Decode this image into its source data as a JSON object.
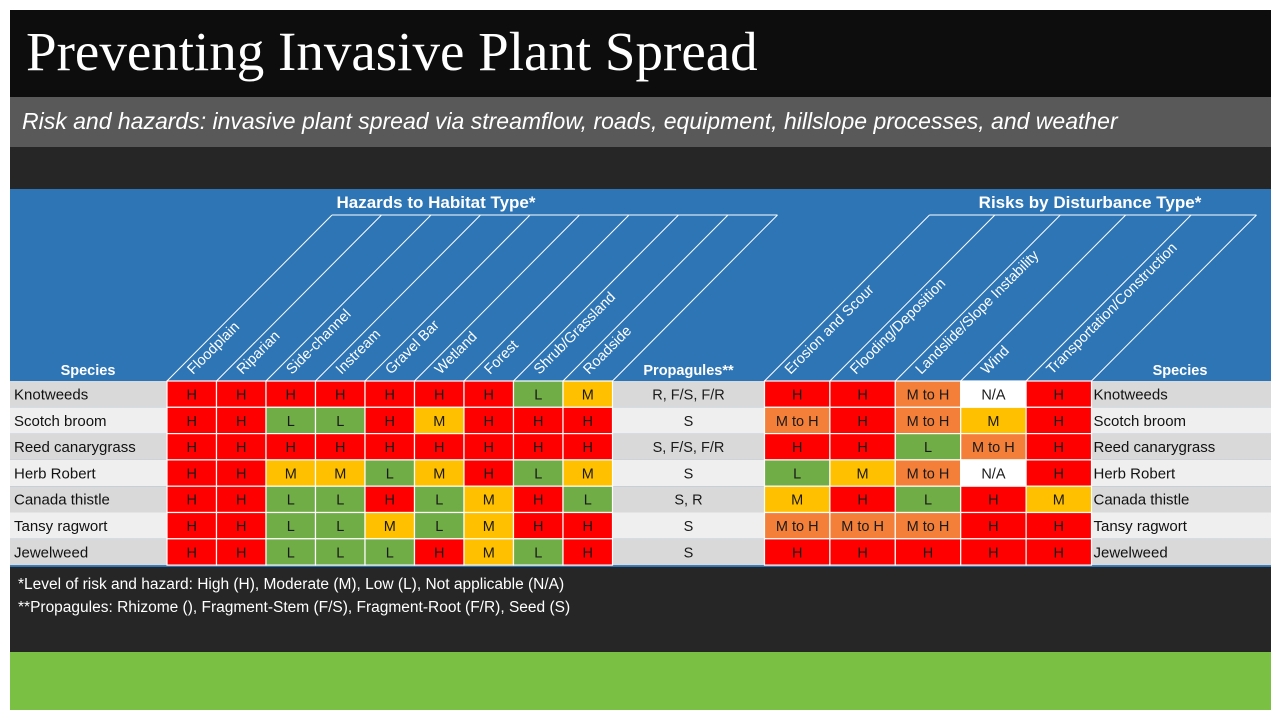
{
  "title": "Preventing Invasive Plant Spread",
  "subtitle": "Risk and hazards: invasive plant spread via streamflow, roads, equipment, hillslope processes, and weather",
  "colors": {
    "H": "#ff0000",
    "M": "#ffc000",
    "L": "#70ad47",
    "MtoH": "#f47f39",
    "NA": "#ffffff",
    "header_blue": "#2e75b6",
    "footer_green": "#7ac143"
  },
  "table": {
    "hazards_header": "Hazards to Habitat Type*",
    "risks_header": "Risks by Disturbance Type*",
    "species_label": "Species",
    "propagules_label": "Propagules**",
    "habitat_columns": [
      "Floodplain",
      "Riparian",
      "Side-channel",
      "Instream",
      "Gravel Bar",
      "Wetland",
      "Forest",
      "Shrub/Grassland",
      "Roadside"
    ],
    "disturbance_columns": [
      "Erosion and Scour",
      "Flooding/Deposition",
      "Landslide/Slope Instability",
      "Wind",
      "Transportation/Construction"
    ],
    "rows": [
      {
        "species": "Knotweeds",
        "hazards": [
          "H",
          "H",
          "H",
          "H",
          "H",
          "H",
          "H",
          "L",
          "M"
        ],
        "propagules": "R, F/S, F/R",
        "risks": [
          "H",
          "H",
          "M to H",
          "N/A",
          "H"
        ]
      },
      {
        "species": "Scotch broom",
        "hazards": [
          "H",
          "H",
          "L",
          "L",
          "H",
          "M",
          "H",
          "H",
          "H"
        ],
        "propagules": "S",
        "risks": [
          "M to H",
          "H",
          "M to H",
          "M",
          "H"
        ]
      },
      {
        "species": "Reed canarygrass",
        "hazards": [
          "H",
          "H",
          "H",
          "H",
          "H",
          "H",
          "H",
          "H",
          "H"
        ],
        "propagules": "S, F/S, F/R",
        "risks": [
          "H",
          "H",
          "L",
          "M to H",
          "H"
        ]
      },
      {
        "species": "Herb Robert",
        "hazards": [
          "H",
          "H",
          "M",
          "M",
          "L",
          "M",
          "H",
          "L",
          "M"
        ],
        "propagules": "S",
        "risks": [
          "L",
          "M",
          "M to H",
          "N/A",
          "H"
        ]
      },
      {
        "species": "Canada thistle",
        "hazards": [
          "H",
          "H",
          "L",
          "L",
          "H",
          "L",
          "M",
          "H",
          "L"
        ],
        "propagules": "S, R",
        "risks": [
          "M",
          "H",
          "L",
          "H",
          "M"
        ]
      },
      {
        "species": "Tansy ragwort",
        "hazards": [
          "H",
          "H",
          "L",
          "L",
          "M",
          "L",
          "M",
          "H",
          "H"
        ],
        "propagules": "S",
        "risks": [
          "M to H",
          "M to H",
          "M to H",
          "H",
          "H"
        ]
      },
      {
        "species": "Jewelweed",
        "hazards": [
          "H",
          "H",
          "L",
          "L",
          "L",
          "H",
          "M",
          "L",
          "H"
        ],
        "propagules": "S",
        "risks": [
          "H",
          "H",
          "H",
          "H",
          "H"
        ]
      }
    ]
  },
  "footnotes": {
    "line1": "*Level of risk and hazard: High (H), Moderate (M), Low (L), Not applicable (N/A)",
    "line2": "**Propagules: Rhizome (), Fragment-Stem (F/S), Fragment-Root (F/R), Seed (S)"
  }
}
